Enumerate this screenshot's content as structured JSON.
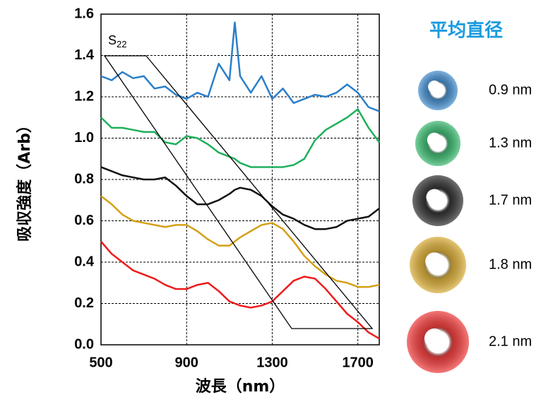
{
  "chart_data": {
    "type": "line",
    "xlabel": "波長（nm）",
    "ylabel": "吸収強度（Arb）",
    "legend_title": "平均直径",
    "annotation": {
      "base": "S",
      "sub": "22"
    },
    "x": [
      500,
      550,
      600,
      650,
      700,
      750,
      800,
      850,
      900,
      950,
      1000,
      1050,
      1100,
      1125,
      1150,
      1200,
      1250,
      1300,
      1350,
      1400,
      1450,
      1500,
      1550,
      1600,
      1650,
      1700,
      1750,
      1800
    ],
    "xlim": [
      500,
      1800
    ],
    "xticks": [
      500,
      900,
      1300,
      1700
    ],
    "ylim": [
      0,
      1.6
    ],
    "yticks": [
      {
        "value": 0,
        "label": "0.0"
      },
      0.2,
      0.4,
      0.6,
      0.8,
      {
        "value": 1,
        "label": "1.0"
      },
      1.2,
      1.4,
      1.6
    ],
    "grid": true,
    "series": [
      {
        "name": "0.9 nm",
        "color": "#2a7fc9",
        "values": [
          1.3,
          1.28,
          1.32,
          1.29,
          1.3,
          1.24,
          1.25,
          1.21,
          1.19,
          1.22,
          1.2,
          1.36,
          1.28,
          1.56,
          1.3,
          1.22,
          1.3,
          1.19,
          1.24,
          1.17,
          1.19,
          1.21,
          1.2,
          1.22,
          1.26,
          1.22,
          1.15,
          1.13
        ]
      },
      {
        "name": "1.3 nm",
        "color": "#1fb05c",
        "values": [
          1.1,
          1.05,
          1.05,
          1.04,
          1.03,
          1.03,
          0.98,
          0.97,
          1.01,
          1.0,
          0.97,
          0.93,
          0.91,
          0.9,
          0.88,
          0.86,
          0.86,
          0.86,
          0.86,
          0.87,
          0.9,
          0.99,
          1.04,
          1.07,
          1.1,
          1.14,
          1.05,
          0.98
        ]
      },
      {
        "name": "1.7 nm",
        "color": "#111111",
        "values": [
          0.86,
          0.84,
          0.82,
          0.81,
          0.8,
          0.8,
          0.81,
          0.77,
          0.72,
          0.68,
          0.68,
          0.7,
          0.73,
          0.75,
          0.76,
          0.75,
          0.72,
          0.67,
          0.63,
          0.61,
          0.58,
          0.56,
          0.56,
          0.57,
          0.6,
          0.61,
          0.62,
          0.66
        ]
      },
      {
        "name": "1.8 nm",
        "color": "#d4a017",
        "values": [
          0.72,
          0.68,
          0.63,
          0.6,
          0.59,
          0.58,
          0.57,
          0.58,
          0.58,
          0.55,
          0.51,
          0.48,
          0.48,
          0.5,
          0.52,
          0.55,
          0.58,
          0.59,
          0.56,
          0.5,
          0.43,
          0.38,
          0.34,
          0.31,
          0.3,
          0.28,
          0.28,
          0.29
        ]
      },
      {
        "name": "2.1 nm",
        "color": "#ee1c1c",
        "values": [
          0.5,
          0.44,
          0.4,
          0.36,
          0.34,
          0.32,
          0.29,
          0.27,
          0.27,
          0.29,
          0.3,
          0.26,
          0.21,
          0.2,
          0.19,
          0.18,
          0.19,
          0.21,
          0.26,
          0.31,
          0.33,
          0.32,
          0.27,
          0.21,
          0.15,
          0.11,
          0.06,
          0.03
        ]
      }
    ]
  }
}
